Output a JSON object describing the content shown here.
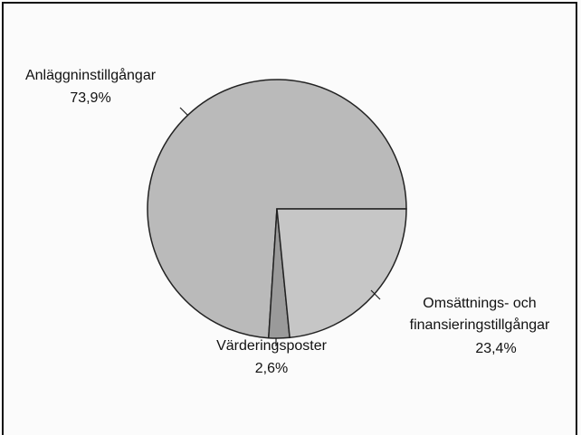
{
  "chart_data": {
    "type": "pie",
    "categories": [
      "Omsättnings- och\nfinansieringstillgångar",
      "Värderingsposter",
      "Anläggninstillgångar"
    ],
    "values": [
      23.4,
      2.6,
      73.9
    ],
    "value_labels": [
      "23,4%",
      "2,6%",
      "73,9%"
    ],
    "colors": [
      "#c6c6c6",
      "#9a9a9a",
      "#bababa"
    ]
  }
}
